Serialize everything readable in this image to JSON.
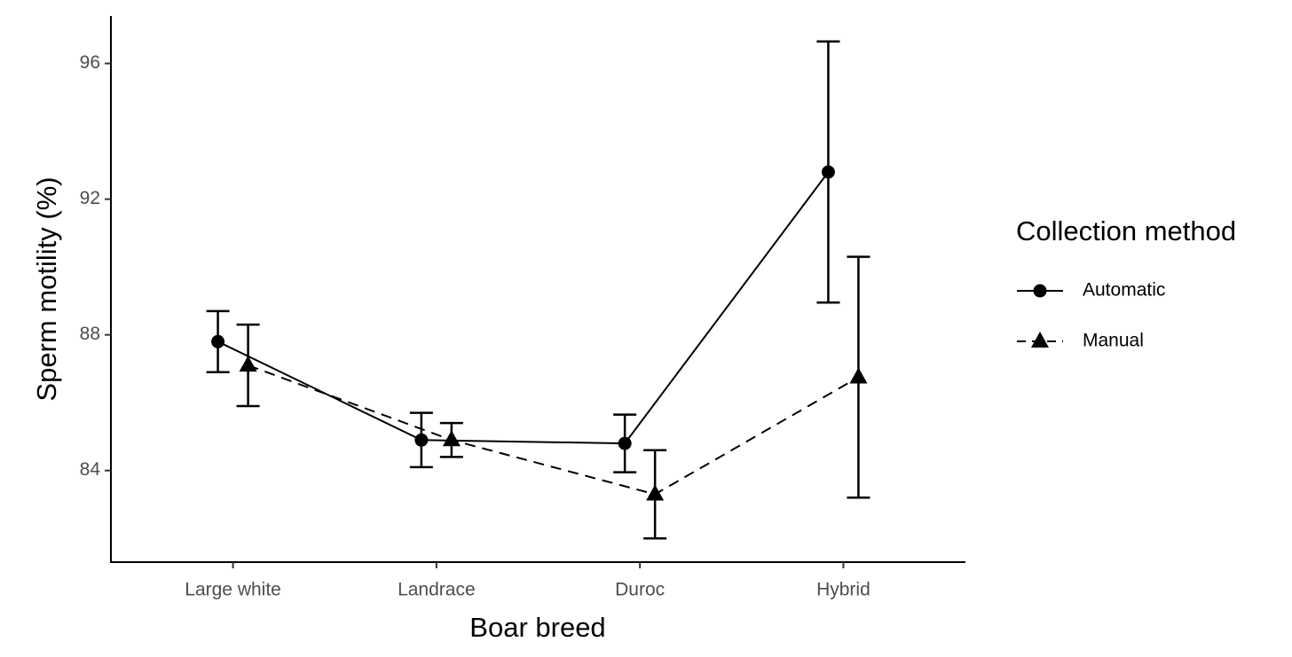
{
  "chart_data": {
    "type": "line",
    "x_label": "Boar breed",
    "y_label": "Sperm motility (%)",
    "categories": [
      "Large white",
      "Landrace",
      "Duroc",
      "Hybrid"
    ],
    "ylim": [
      81.3,
      97.4
    ],
    "yticks": [
      84,
      88,
      92,
      96
    ],
    "legend_title": "Collection method",
    "legend_position": "right",
    "series": [
      {
        "name": "Automatic",
        "color": "#000000",
        "marker": "circle",
        "line_style": "solid",
        "values": [
          87.8,
          84.9,
          84.8,
          92.8
        ],
        "errors": [
          0.9,
          0.8,
          0.85,
          3.85
        ]
      },
      {
        "name": "Manual",
        "color": "#000000",
        "marker": "triangle",
        "line_style": "dashed",
        "values": [
          87.1,
          84.9,
          83.3,
          86.75
        ],
        "errors": [
          1.2,
          0.5,
          1.3,
          3.55
        ]
      }
    ]
  }
}
